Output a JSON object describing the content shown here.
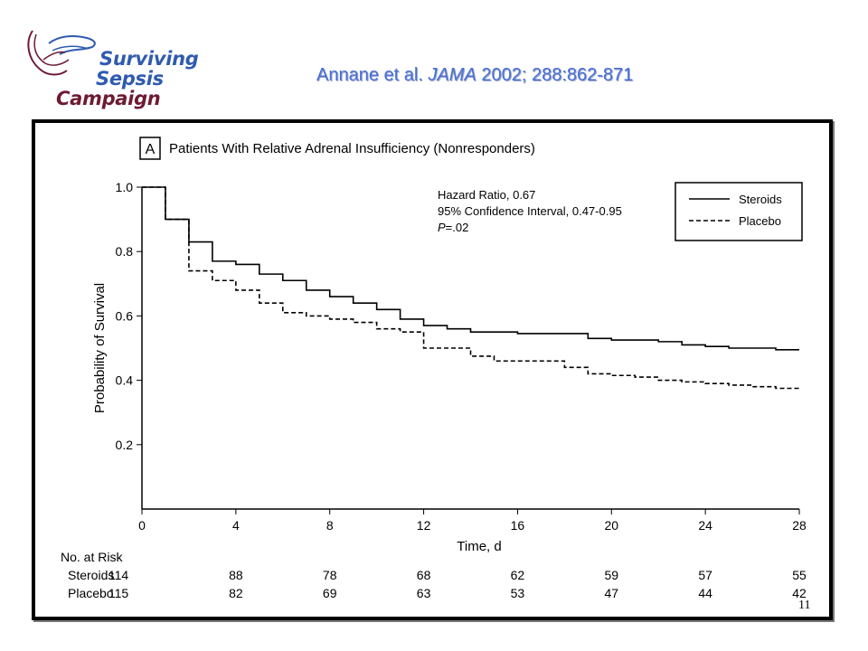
{
  "logo": {
    "line1": "Surviving",
    "line2": "Sepsis",
    "line3": "Campaign",
    "icon": "hands-icon"
  },
  "citation": {
    "authors": "Annane et al.",
    "journal": "JAMA",
    "details": "2002; 288:862-871"
  },
  "page_number": "11",
  "colors": {
    "citation": "#4a6fd6",
    "logo_blue": "#2f5bb0",
    "logo_maroon": "#6e1a33",
    "frame": "#000000"
  },
  "chart_data": {
    "type": "line",
    "panel_letter": "A",
    "title": "Patients With Relative Adrenal Insufficiency (Nonresponders)",
    "xlabel": "Time, d",
    "ylabel": "Probability of Survival",
    "xlim": [
      0,
      28
    ],
    "ylim": [
      0,
      1.0
    ],
    "xticks": [
      "0",
      "4",
      "8",
      "12",
      "16",
      "20",
      "24",
      "28"
    ],
    "xtick_values": [
      0,
      4,
      8,
      12,
      16,
      20,
      24,
      28
    ],
    "yticks": [
      "0.2",
      "0.4",
      "0.6",
      "0.8",
      "1.0"
    ],
    "ytick_values": [
      0.2,
      0.4,
      0.6,
      0.8,
      1.0
    ],
    "grid": false,
    "step": true,
    "stats": {
      "hazard_ratio": "Hazard Ratio, 0.67",
      "ci": "95% Confidence Interval, 0.47-0.95",
      "p_prefix": "P",
      "p_value": "=.02"
    },
    "legend_position": "top-right",
    "series": [
      {
        "name": "Steroids",
        "style": "solid",
        "x": [
          0,
          1,
          2,
          3,
          4,
          5,
          6,
          7,
          8,
          9,
          10,
          11,
          12,
          13,
          14,
          15,
          16,
          17,
          18,
          19,
          20,
          21,
          22,
          23,
          24,
          25,
          26,
          27,
          28
        ],
        "y": [
          1.0,
          0.9,
          0.83,
          0.77,
          0.76,
          0.73,
          0.71,
          0.68,
          0.66,
          0.64,
          0.62,
          0.59,
          0.57,
          0.56,
          0.55,
          0.55,
          0.545,
          0.545,
          0.545,
          0.53,
          0.525,
          0.525,
          0.52,
          0.51,
          0.505,
          0.5,
          0.5,
          0.495,
          0.495
        ]
      },
      {
        "name": "Placebo",
        "style": "dashed",
        "x": [
          0,
          1,
          2,
          3,
          4,
          5,
          6,
          7,
          8,
          9,
          10,
          11,
          12,
          13,
          14,
          15,
          16,
          17,
          18,
          19,
          20,
          21,
          22,
          23,
          24,
          25,
          26,
          27,
          28
        ],
        "y": [
          1.0,
          0.9,
          0.74,
          0.71,
          0.68,
          0.64,
          0.61,
          0.6,
          0.59,
          0.58,
          0.56,
          0.55,
          0.5,
          0.5,
          0.475,
          0.46,
          0.46,
          0.46,
          0.44,
          0.42,
          0.415,
          0.41,
          0.4,
          0.395,
          0.39,
          0.385,
          0.38,
          0.375,
          0.375
        ]
      }
    ],
    "at_risk": {
      "header": "No. at Risk",
      "times": [
        0,
        4,
        8,
        12,
        16,
        20,
        24,
        28
      ],
      "rows": [
        {
          "label": "Steroids",
          "values": [
            "114",
            "88",
            "78",
            "68",
            "62",
            "59",
            "57",
            "55"
          ]
        },
        {
          "label": "Placebo",
          "values": [
            "115",
            "82",
            "69",
            "63",
            "53",
            "47",
            "44",
            "42"
          ]
        }
      ]
    }
  }
}
